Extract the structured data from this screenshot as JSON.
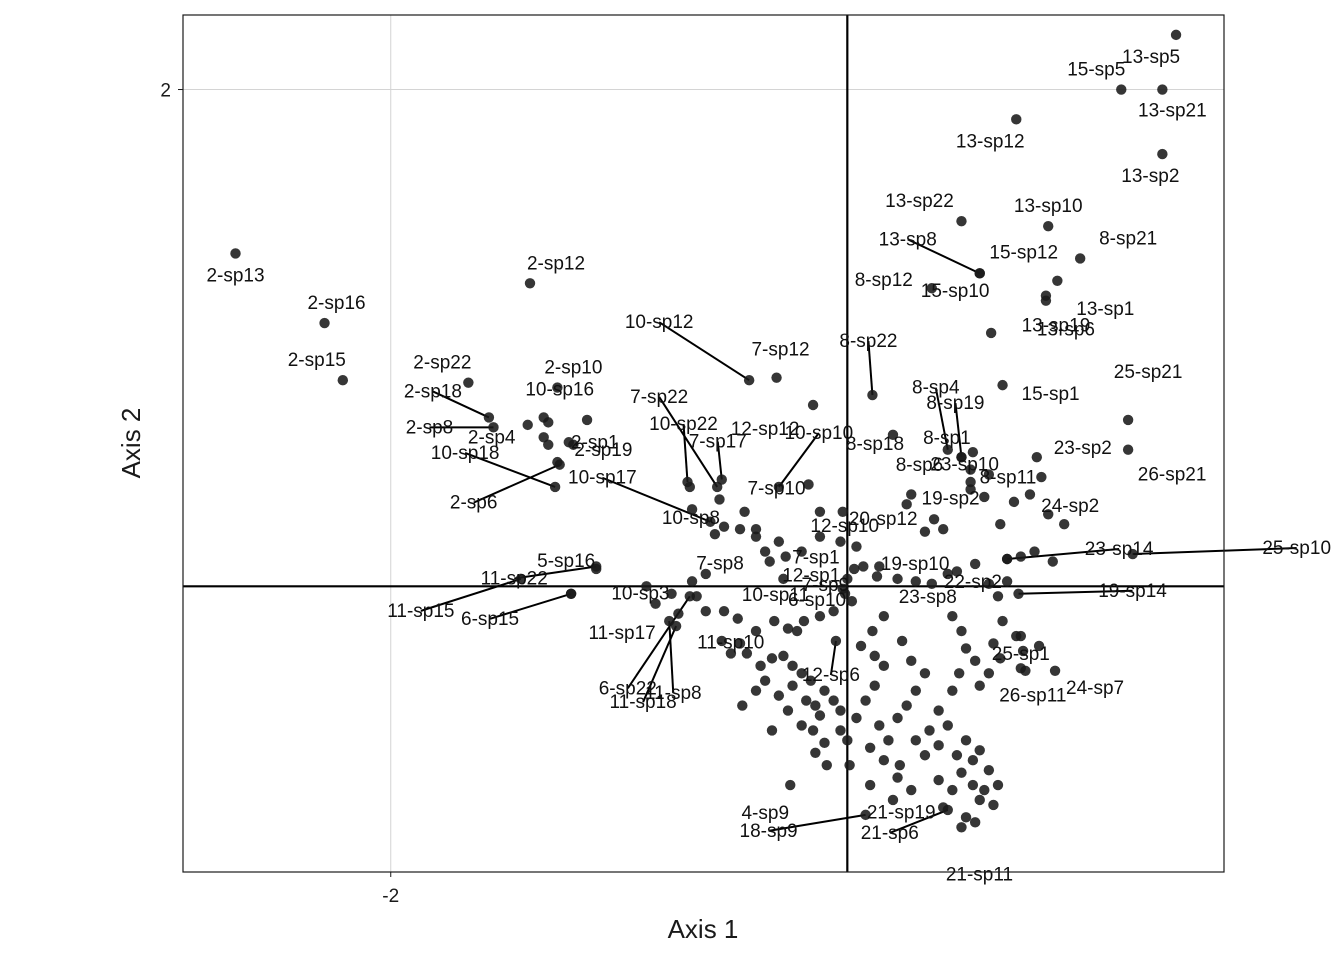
{
  "chart_data": {
    "type": "scatter",
    "title": "",
    "xlabel": "Axis 1",
    "ylabel": "Axis 2",
    "xlim": [
      -2.91,
      1.65
    ],
    "ylim": [
      -1.15,
      2.3
    ],
    "xticks": [
      {
        "value": -2,
        "label": "-2"
      }
    ],
    "yticks": [
      {
        "value": 2,
        "label": "2"
      }
    ],
    "grid": true,
    "reference_lines": {
      "x": 0,
      "y": 0
    },
    "colors": {
      "point": "#1a1a1a",
      "grid": "#d4d4d4",
      "frame": "#1a1a1a",
      "reference": "#000000"
    },
    "labeled_points": [
      {
        "label": "13-sp5",
        "x": 1.44,
        "y": 2.22
      },
      {
        "label": "15-sp5",
        "x": 1.2,
        "y": 2.0
      },
      {
        "label": "13-sp21",
        "x": 1.38,
        "y": 2.0
      },
      {
        "label": "13-sp12",
        "x": 0.74,
        "y": 1.88
      },
      {
        "label": "13-sp2",
        "x": 1.38,
        "y": 1.74
      },
      {
        "label": "13-sp22",
        "x": 0.5,
        "y": 1.47
      },
      {
        "label": "13-sp10",
        "x": 0.88,
        "y": 1.45
      },
      {
        "label": "13-sp8",
        "x": 0.58,
        "y": 1.26
      },
      {
        "label": "15-sp12",
        "x": 0.58,
        "y": 1.26
      },
      {
        "label": "8-sp21",
        "x": 1.02,
        "y": 1.32
      },
      {
        "label": "8-sp12",
        "x": 0.37,
        "y": 1.2
      },
      {
        "label": "13-sp19",
        "x": 0.87,
        "y": 1.15
      },
      {
        "label": "13-sp1",
        "x": 0.92,
        "y": 1.23
      },
      {
        "label": "13-sp6",
        "x": 0.87,
        "y": 1.17
      },
      {
        "label": "2-sp13",
        "x": -2.68,
        "y": 1.34
      },
      {
        "label": "2-sp12",
        "x": -1.39,
        "y": 1.22
      },
      {
        "label": "2-sp16",
        "x": -2.29,
        "y": 1.06
      },
      {
        "label": "2-sp15",
        "x": -2.21,
        "y": 0.83
      },
      {
        "label": "2-sp22",
        "x": -1.66,
        "y": 0.82
      },
      {
        "label": "2-sp10",
        "x": -1.27,
        "y": 0.8
      },
      {
        "label": "2-sp18",
        "x": -1.57,
        "y": 0.68
      },
      {
        "label": "10-sp16",
        "x": -1.33,
        "y": 0.68
      },
      {
        "label": "2-sp8",
        "x": -1.55,
        "y": 0.64
      },
      {
        "label": "2-sp1",
        "x": -1.22,
        "y": 0.58
      },
      {
        "label": "2-sp4",
        "x": -1.33,
        "y": 0.6
      },
      {
        "label": "2-sp19",
        "x": -1.27,
        "y": 0.5
      },
      {
        "label": "2-sp6",
        "x": -1.26,
        "y": 0.49
      },
      {
        "label": "10-sp12",
        "x": -0.43,
        "y": 0.83
      },
      {
        "label": "7-sp12",
        "x": -0.31,
        "y": 0.84
      },
      {
        "label": "7-sp22",
        "x": -0.57,
        "y": 0.4
      },
      {
        "label": "12-sp12",
        "x": -0.15,
        "y": 0.73
      },
      {
        "label": "8-sp22",
        "x": 0.11,
        "y": 0.77
      },
      {
        "label": "8-sp4",
        "x": 0.44,
        "y": 0.55
      },
      {
        "label": "10-sp22",
        "x": -0.7,
        "y": 0.42
      },
      {
        "label": "10-sp10",
        "x": -0.3,
        "y": 0.4
      },
      {
        "label": "8-sp18",
        "x": 0.2,
        "y": 0.61
      },
      {
        "label": "15-sp10",
        "x": 0.63,
        "y": 1.02
      },
      {
        "label": "8-sp19",
        "x": 0.5,
        "y": 0.52
      },
      {
        "label": "15-sp1",
        "x": 0.68,
        "y": 0.81
      },
      {
        "label": "25-sp21",
        "x": 1.23,
        "y": 0.67
      },
      {
        "label": "23-sp2",
        "x": 0.83,
        "y": 0.52
      },
      {
        "label": "26-sp21",
        "x": 1.23,
        "y": 0.55
      },
      {
        "label": "8-sp1",
        "x": 0.55,
        "y": 0.54
      },
      {
        "label": "8-sp6",
        "x": 0.5,
        "y": 0.52
      },
      {
        "label": "7-sp10",
        "x": -0.17,
        "y": 0.41
      },
      {
        "label": "7-sp17",
        "x": -0.55,
        "y": 0.43
      },
      {
        "label": "19-sp2",
        "x": 0.54,
        "y": 0.47
      },
      {
        "label": "12-sp10",
        "x": -0.02,
        "y": 0.3
      },
      {
        "label": "23-sp10",
        "x": 0.54,
        "y": 0.39
      },
      {
        "label": "10-sp18",
        "x": -1.28,
        "y": 0.4
      },
      {
        "label": "10-sp17",
        "x": -0.6,
        "y": 0.26
      },
      {
        "label": "7-sp1",
        "x": -0.12,
        "y": 0.2
      },
      {
        "label": "20-sp12",
        "x": 0.42,
        "y": 0.23
      },
      {
        "label": "8-sp11",
        "x": 0.8,
        "y": 0.37
      },
      {
        "label": "24-sp2",
        "x": 0.95,
        "y": 0.25
      },
      {
        "label": "11-sp22",
        "x": -1.1,
        "y": 0.08
      },
      {
        "label": "10-sp8",
        "x": -0.58,
        "y": 0.21
      },
      {
        "label": "7-sp8",
        "x": -0.4,
        "y": 0.2
      },
      {
        "label": "12-sp1",
        "x": 0.14,
        "y": 0.08
      },
      {
        "label": "19-sp10",
        "x": 0.7,
        "y": 0.11
      },
      {
        "label": "23-sp14",
        "x": 0.7,
        "y": 0.11
      },
      {
        "label": "25-sp10",
        "x": 1.25,
        "y": 0.13
      },
      {
        "label": "5-sp16",
        "x": -1.1,
        "y": 0.07
      },
      {
        "label": "7-sp9",
        "x": 0.0,
        "y": 0.03
      },
      {
        "label": "10-sp3",
        "x": -0.88,
        "y": 0.0
      },
      {
        "label": "10-sp11",
        "x": -0.28,
        "y": 0.03
      },
      {
        "label": "22-sp2",
        "x": 0.62,
        "y": 0.01
      },
      {
        "label": "23-sp8",
        "x": 0.37,
        "y": 0.01
      },
      {
        "label": "11-sp15",
        "x": -1.43,
        "y": 0.03
      },
      {
        "label": "6-sp15",
        "x": -1.21,
        "y": -0.03
      },
      {
        "label": "19-sp14",
        "x": 0.75,
        "y": -0.03
      },
      {
        "label": "11-sp17",
        "x": -1.21,
        "y": -0.03
      },
      {
        "label": "11-sp10",
        "x": -0.48,
        "y": -0.13
      },
      {
        "label": "6-sp10",
        "x": -0.01,
        "y": -0.03
      },
      {
        "label": "25-sp1",
        "x": 0.76,
        "y": -0.2
      },
      {
        "label": "6-sp22",
        "x": -0.69,
        "y": -0.04
      },
      {
        "label": "12-sp6",
        "x": -0.05,
        "y": -0.22
      },
      {
        "label": "24-sp7",
        "x": 0.91,
        "y": -0.34
      },
      {
        "label": "11-sp18",
        "x": -0.75,
        "y": -0.16
      },
      {
        "label": "11-sp8",
        "x": -0.78,
        "y": -0.14
      },
      {
        "label": "26-sp11",
        "x": 0.76,
        "y": -0.33
      },
      {
        "label": "4-sp9",
        "x": -0.25,
        "y": -0.8
      },
      {
        "label": "21-sp19",
        "x": 0.42,
        "y": -0.89
      },
      {
        "label": "18-sp9",
        "x": 0.08,
        "y": -0.92
      },
      {
        "label": "21-sp6",
        "x": 0.44,
        "y": -0.9
      },
      {
        "label": "21-sp11",
        "x": 0.5,
        "y": -0.97
      }
    ],
    "unlabeled_points": [
      [
        -1.31,
        0.66
      ],
      [
        -1.31,
        0.57
      ],
      [
        -1.2,
        0.57
      ],
      [
        -1.4,
        0.65
      ],
      [
        -1.14,
        0.67
      ],
      [
        -0.69,
        0.4
      ],
      [
        -0.68,
        0.31
      ],
      [
        -0.56,
        0.35
      ],
      [
        -0.45,
        0.3
      ],
      [
        -0.54,
        0.24
      ],
      [
        -0.47,
        0.23
      ],
      [
        -0.4,
        0.23
      ],
      [
        -0.36,
        0.14
      ],
      [
        -0.3,
        0.18
      ],
      [
        -0.27,
        0.12
      ],
      [
        -0.34,
        0.1
      ],
      [
        -0.2,
        0.14
      ],
      [
        -0.03,
        0.18
      ],
      [
        -0.12,
        0.3
      ],
      [
        0.04,
        0.16
      ],
      [
        0.07,
        0.08
      ],
      [
        0.13,
        0.04
      ],
      [
        0.03,
        0.07
      ],
      [
        -0.02,
        -0.01
      ],
      [
        0.02,
        -0.06
      ],
      [
        -0.06,
        -0.1
      ],
      [
        -0.12,
        -0.12
      ],
      [
        -0.19,
        -0.14
      ],
      [
        -0.22,
        -0.18
      ],
      [
        -0.26,
        -0.17
      ],
      [
        -0.32,
        -0.14
      ],
      [
        -0.4,
        -0.18
      ],
      [
        -0.47,
        -0.23
      ],
      [
        -0.51,
        -0.27
      ],
      [
        -0.55,
        -0.22
      ],
      [
        -0.44,
        -0.27
      ],
      [
        -0.38,
        -0.32
      ],
      [
        -0.33,
        -0.29
      ],
      [
        -0.28,
        -0.28
      ],
      [
        -0.24,
        -0.32
      ],
      [
        -0.2,
        -0.35
      ],
      [
        -0.16,
        -0.38
      ],
      [
        -0.1,
        -0.42
      ],
      [
        -0.06,
        -0.46
      ],
      [
        -0.03,
        -0.5
      ],
      [
        -0.12,
        -0.52
      ],
      [
        -0.15,
        -0.58
      ],
      [
        -0.1,
        -0.63
      ],
      [
        -0.09,
        -0.72
      ],
      [
        -0.14,
        -0.67
      ],
      [
        -0.03,
        -0.58
      ],
      [
        0.0,
        -0.62
      ],
      [
        0.04,
        -0.53
      ],
      [
        0.08,
        -0.46
      ],
      [
        0.12,
        -0.4
      ],
      [
        0.16,
        -0.32
      ],
      [
        0.12,
        -0.28
      ],
      [
        0.06,
        -0.24
      ],
      [
        0.11,
        -0.18
      ],
      [
        0.16,
        -0.12
      ],
      [
        0.24,
        -0.22
      ],
      [
        0.28,
        -0.3
      ],
      [
        0.34,
        -0.35
      ],
      [
        0.3,
        -0.42
      ],
      [
        0.26,
        -0.48
      ],
      [
        0.22,
        -0.53
      ],
      [
        0.14,
        -0.56
      ],
      [
        0.18,
        -0.62
      ],
      [
        0.1,
        -0.65
      ],
      [
        0.16,
        -0.7
      ],
      [
        0.23,
        -0.72
      ],
      [
        0.3,
        -0.62
      ],
      [
        0.34,
        -0.68
      ],
      [
        0.36,
        -0.58
      ],
      [
        0.22,
        -0.77
      ],
      [
        0.28,
        -0.82
      ],
      [
        0.4,
        -0.78
      ],
      [
        0.2,
        -0.86
      ],
      [
        0.1,
        -0.8
      ],
      [
        0.01,
        -0.72
      ],
      [
        -0.36,
        -0.38
      ],
      [
        -0.3,
        -0.44
      ],
      [
        -0.24,
        -0.4
      ],
      [
        -0.18,
        -0.46
      ],
      [
        -0.14,
        -0.48
      ],
      [
        -0.26,
        -0.5
      ],
      [
        -0.4,
        -0.42
      ],
      [
        -0.46,
        -0.48
      ],
      [
        -0.33,
        -0.58
      ],
      [
        -0.2,
        -0.56
      ],
      [
        0.4,
        -0.5
      ],
      [
        0.44,
        -0.56
      ],
      [
        0.52,
        -0.62
      ],
      [
        0.4,
        -0.64
      ],
      [
        0.48,
        -0.68
      ],
      [
        0.55,
        -0.7
      ],
      [
        0.58,
        -0.66
      ],
      [
        0.5,
        -0.75
      ],
      [
        0.55,
        -0.8
      ],
      [
        0.46,
        -0.82
      ],
      [
        0.58,
        -0.86
      ],
      [
        0.62,
        -0.74
      ],
      [
        0.6,
        -0.82
      ],
      [
        0.66,
        -0.8
      ],
      [
        0.64,
        -0.88
      ],
      [
        0.52,
        -0.93
      ],
      [
        0.56,
        -0.95
      ],
      [
        0.5,
        -0.18
      ],
      [
        0.52,
        -0.25
      ],
      [
        0.56,
        -0.3
      ],
      [
        0.62,
        -0.35
      ],
      [
        0.67,
        -0.29
      ],
      [
        0.58,
        -0.4
      ],
      [
        0.49,
        -0.35
      ],
      [
        0.46,
        -0.42
      ],
      [
        0.64,
        -0.23
      ],
      [
        0.68,
        -0.14
      ],
      [
        0.74,
        -0.2
      ],
      [
        0.77,
        -0.26
      ],
      [
        0.84,
        -0.24
      ],
      [
        0.78,
        -0.34
      ],
      [
        0.66,
        -0.04
      ],
      [
        0.7,
        0.02
      ],
      [
        0.46,
        -0.12
      ],
      [
        0.82,
        0.14
      ],
      [
        0.9,
        0.1
      ],
      [
        0.76,
        0.12
      ],
      [
        0.88,
        0.29
      ],
      [
        0.73,
        0.34
      ],
      [
        0.85,
        0.44
      ],
      [
        0.62,
        0.45
      ],
      [
        0.54,
        0.42
      ],
      [
        0.6,
        0.36
      ],
      [
        0.67,
        0.25
      ],
      [
        0.48,
        0.06
      ],
      [
        0.44,
        0.05
      ],
      [
        0.56,
        0.09
      ],
      [
        0.3,
        0.02
      ],
      [
        0.22,
        0.03
      ],
      [
        0.34,
        0.22
      ],
      [
        0.38,
        0.27
      ],
      [
        0.26,
        0.33
      ],
      [
        0.28,
        0.37
      ],
      [
        -0.62,
        0.05
      ],
      [
        -0.68,
        0.02
      ],
      [
        -0.77,
        -0.03
      ],
      [
        -0.84,
        -0.07
      ],
      [
        -0.74,
        -0.11
      ],
      [
        -0.62,
        -0.1
      ],
      [
        -0.54,
        -0.1
      ],
      [
        -0.66,
        -0.04
      ]
    ]
  }
}
